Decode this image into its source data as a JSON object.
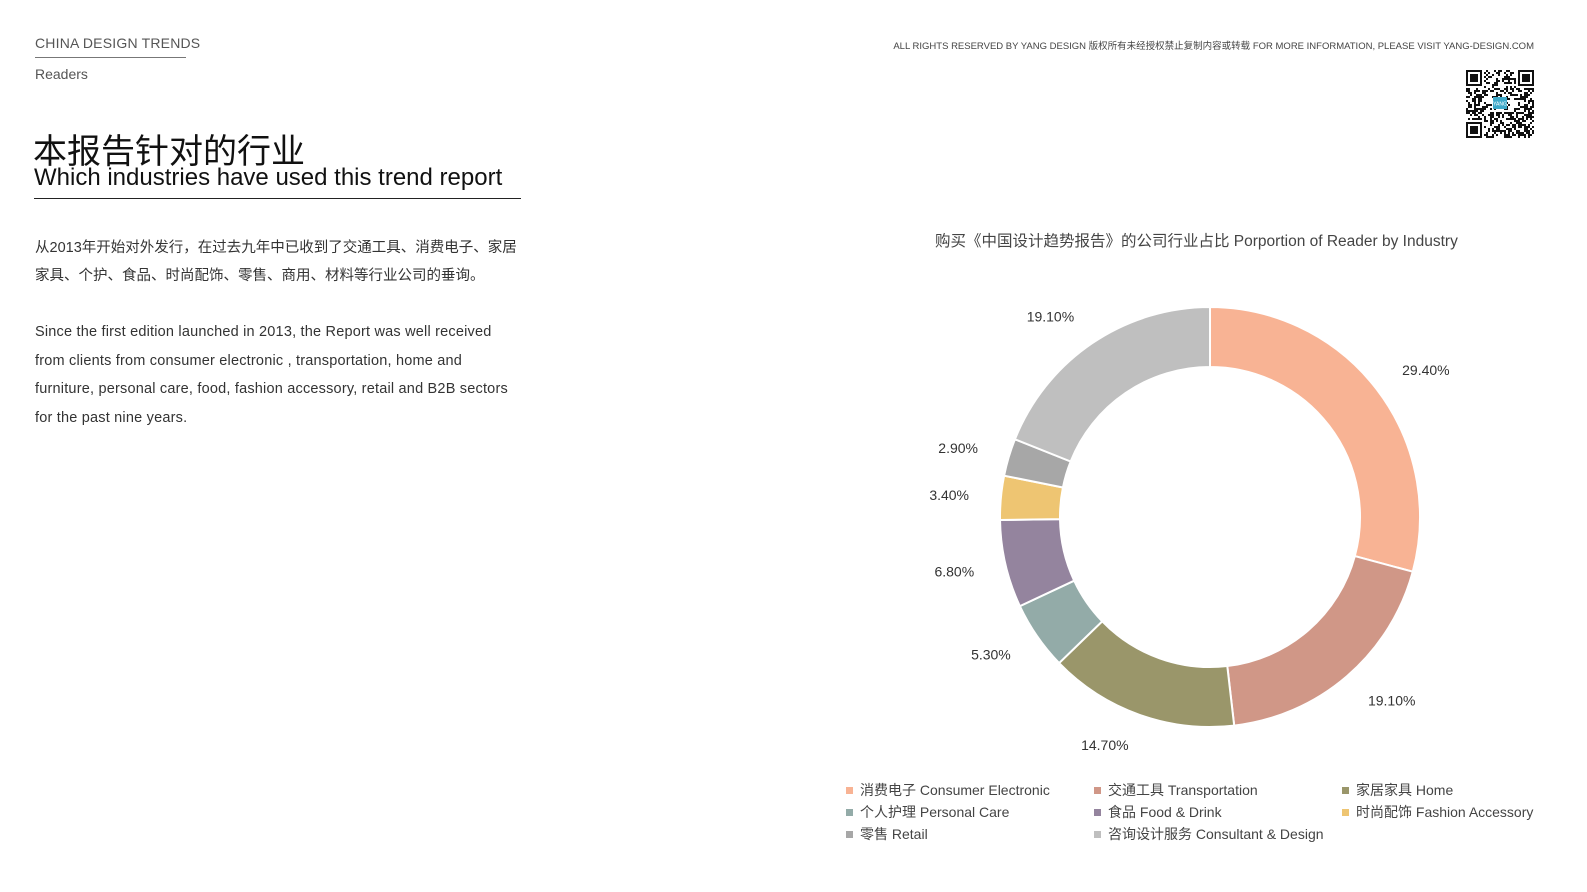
{
  "header": {
    "brand": "CHINA DESIGN TRENDS",
    "section": "Readers",
    "copyright": "ALL RIGHTS RESERVED BY YANG DESIGN  版权所有未经授权禁止复制内容或转载  FOR MORE INFORMATION, PLEASE VISIT YANG-DESIGN.COM"
  },
  "qr": {
    "icon": "qr-code-icon",
    "badge_text": "YANG"
  },
  "title": {
    "cn": "本报告针对的行业",
    "en": "Which industries have used this trend report"
  },
  "body": {
    "cn": "从2013年开始对外发行，在过去九年中已收到了交通工具、消费电子、家居家具、个护、食品、时尚配饰、零售、商用、材料等行业公司的垂询。",
    "en": "Since the first edition launched in 2013, the Report was well received from clients from consumer electronic , transportation, home and furniture, personal care, food, fashion accessory, retail and B2B sectors for the past nine years."
  },
  "chart_data": {
    "type": "pie",
    "style": "donut",
    "title": "购买《中国设计趋势报告》的公司行业占比  Porportion of Reader by Industry",
    "legend_position": "bottom",
    "categories": [
      "消费电子 Consumer Electronic",
      "交通工具 Transportation",
      "家居家具 Home",
      "个人护理 Personal Care",
      "食品 Food & Drink",
      "时尚配饰 Fashion Accessory",
      "零售 Retail",
      "咨询设计服务 Consultant & Design"
    ],
    "values": [
      29.4,
      19.1,
      14.7,
      5.3,
      6.8,
      3.4,
      2.9,
      19.1
    ],
    "labels": [
      "29.40%",
      "19.10%",
      "14.70%",
      "5.30%",
      "6.80%",
      "3.40%",
      "2.90%",
      "19.10%"
    ],
    "colors": [
      "#F8B394",
      "#D09787",
      "#9A966A",
      "#93ABA8",
      "#94849E",
      "#EEC572",
      "#A7A7A7",
      "#BFBFBF"
    ]
  }
}
